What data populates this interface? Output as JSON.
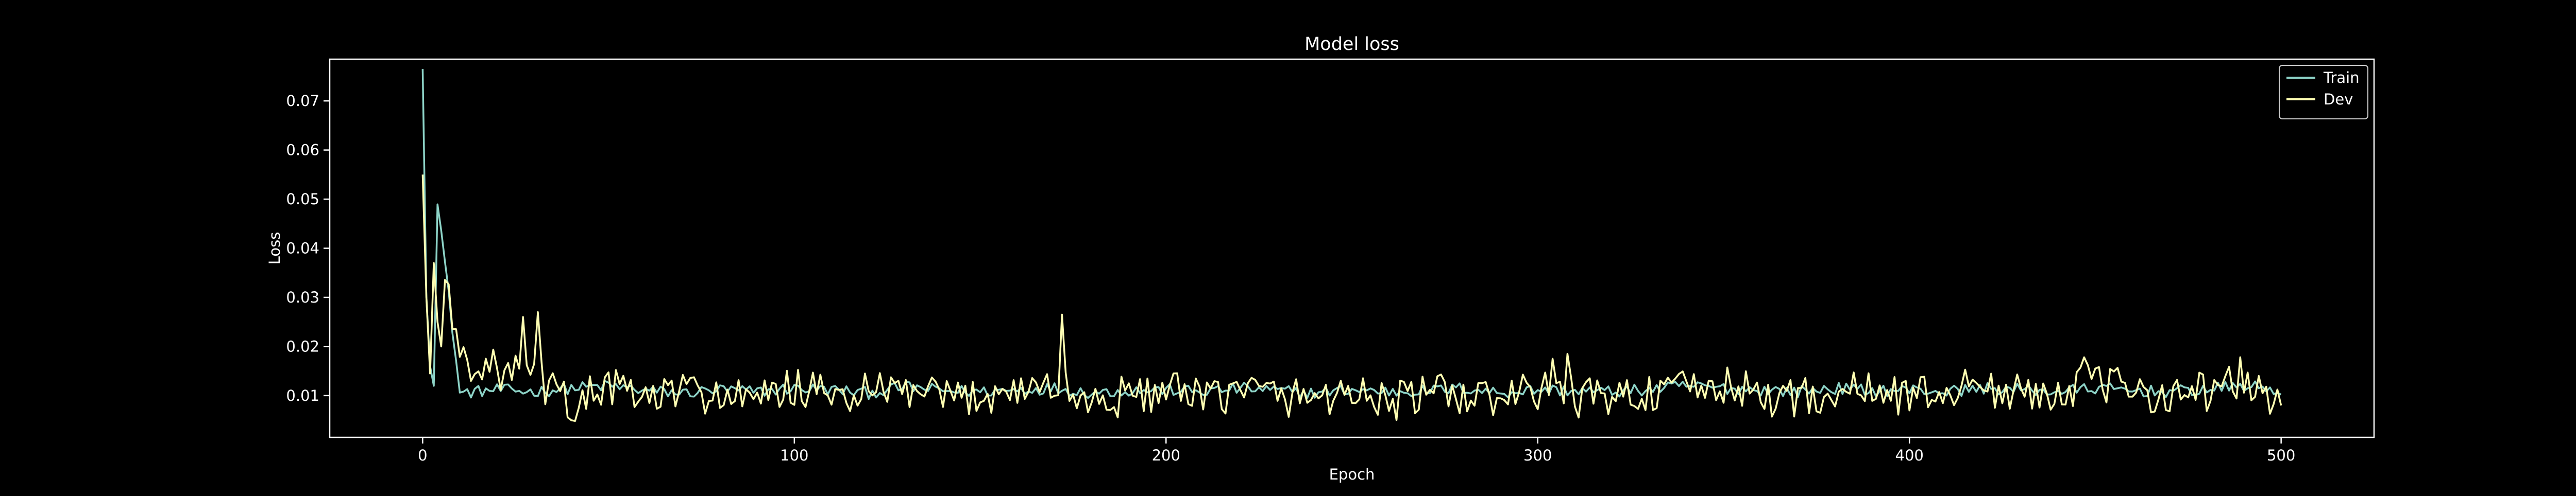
{
  "chart_data": {
    "type": "line",
    "title": "Model loss",
    "xlabel": "Epoch",
    "ylabel": "Loss",
    "xlim": [
      -25,
      525
    ],
    "ylim": [
      0.0015,
      0.0785
    ],
    "x_ticks": [
      0,
      100,
      200,
      300,
      400,
      500
    ],
    "y_ticks": [
      0.01,
      0.02,
      0.03,
      0.04,
      0.05,
      0.06,
      0.07
    ],
    "x_tick_labels": [
      "0",
      "100",
      "200",
      "300",
      "400",
      "500"
    ],
    "y_tick_labels": [
      "0.01",
      "0.02",
      "0.03",
      "0.04",
      "0.05",
      "0.06",
      "0.07"
    ],
    "grid": false,
    "legend_position": "top-right",
    "x_range": [
      0,
      500
    ],
    "series": [
      {
        "name": "Train",
        "color": "#8dd3c7",
        "values_sampled_every_10_epochs": [
          0.0765,
          0.0105,
          0.0112,
          0.0108,
          0.0115,
          0.012,
          0.011,
          0.0105,
          0.0112,
          0.0108,
          0.0115,
          0.0112,
          0.0105,
          0.0118,
          0.011,
          0.0108,
          0.0112,
          0.0115,
          0.0106,
          0.011,
          0.0112,
          0.0108,
          0.0115,
          0.011,
          0.0105,
          0.0112,
          0.0108,
          0.011,
          0.0115,
          0.0106,
          0.0112,
          0.011,
          0.0108,
          0.0112,
          0.012,
          0.0115,
          0.0112,
          0.0108,
          0.0115,
          0.011,
          0.0112,
          0.0108,
          0.0115,
          0.0112,
          0.0108,
          0.0115,
          0.011,
          0.0108,
          0.0112,
          0.012,
          0.011
        ]
      },
      {
        "name": "Dev",
        "color": "#ffffb3",
        "values_sampled_every_10_epochs": [
          0.055,
          0.018,
          0.015,
          0.014,
          0.008,
          0.012,
          0.009,
          0.011,
          0.01,
          0.0085,
          0.012,
          0.0095,
          0.0105,
          0.011,
          0.009,
          0.01,
          0.0115,
          0.012,
          0.0085,
          0.01,
          0.011,
          0.009,
          0.0115,
          0.01,
          0.0095,
          0.011,
          0.0085,
          0.0105,
          0.01,
          0.009,
          0.011,
          0.0095,
          0.01,
          0.0105,
          0.011,
          0.012,
          0.01,
          0.0095,
          0.0105,
          0.011,
          0.01,
          0.011,
          0.012,
          0.01,
          0.0115,
          0.0125,
          0.011,
          0.0105,
          0.011,
          0.013,
          0.008
        ]
      }
    ]
  }
}
